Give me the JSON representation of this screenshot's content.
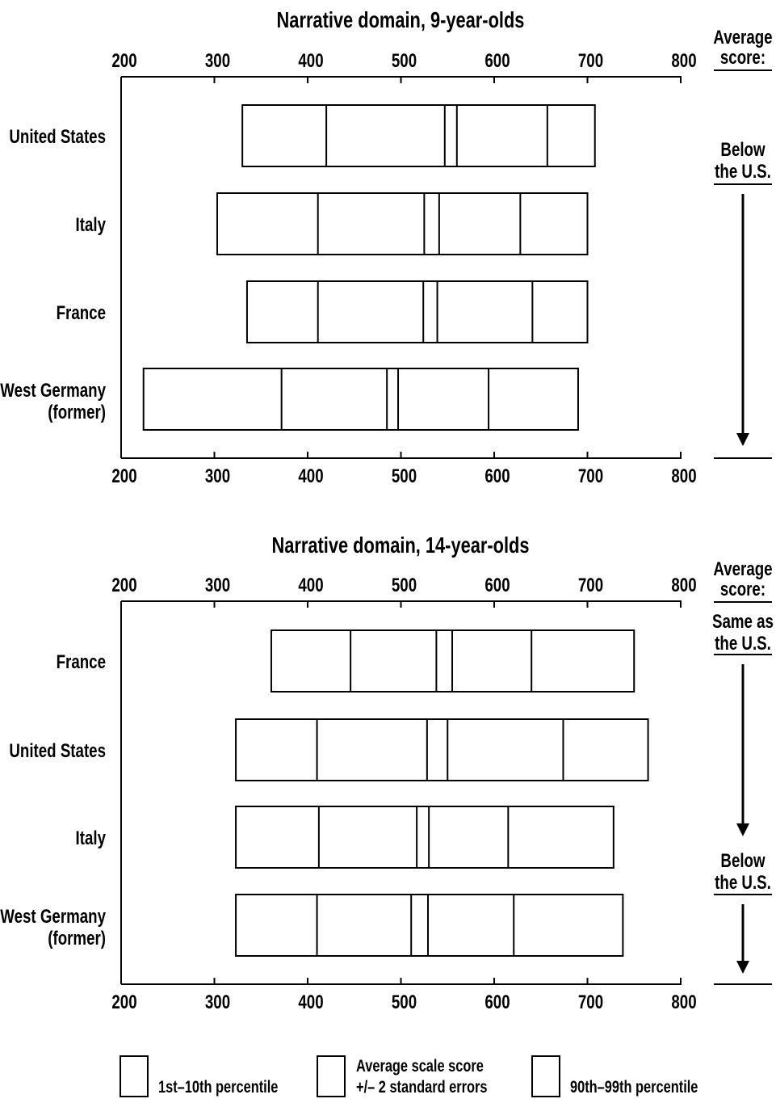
{
  "chart_data": [
    {
      "type": "box",
      "title": "Narrative domain, 9-year-olds",
      "xlim": [
        200,
        800
      ],
      "ticks": [
        200,
        300,
        400,
        500,
        600,
        700,
        800
      ],
      "side_header": "Average score:",
      "groups": [
        {
          "label": "Below the U.S.",
          "rows": [
            1,
            3
          ]
        }
      ],
      "countries": [
        {
          "label": "United States",
          "p1": 330,
          "p10": 420,
          "se_low": 547,
          "se_high": 560,
          "p90": 657,
          "p99": 708
        },
        {
          "label": "Italy",
          "p1": 303,
          "p10": 411,
          "se_low": 525,
          "se_high": 541,
          "p90": 628,
          "p99": 700
        },
        {
          "label": "France",
          "p1": 335,
          "p10": 411,
          "se_low": 524,
          "se_high": 539,
          "p90": 641,
          "p99": 700
        },
        {
          "label": "West Germany (former)",
          "p1": 224,
          "p10": 372,
          "se_low": 485,
          "se_high": 497,
          "p90": 594,
          "p99": 690
        }
      ]
    },
    {
      "type": "box",
      "title": "Narrative domain, 14-year-olds",
      "xlim": [
        200,
        800
      ],
      "ticks": [
        200,
        300,
        400,
        500,
        600,
        700,
        800
      ],
      "side_header": "Average score:",
      "groups": [
        {
          "label": "Same as the U.S.",
          "rows": [
            0,
            1
          ]
        },
        {
          "label": "Below the U.S.",
          "rows": [
            2,
            3
          ]
        }
      ],
      "countries": [
        {
          "label": "France",
          "p1": 361,
          "p10": 446,
          "se_low": 538,
          "se_high": 555,
          "p90": 640,
          "p99": 750
        },
        {
          "label": "United States",
          "p1": 323,
          "p10": 410,
          "se_low": 528,
          "se_high": 550,
          "p90": 674,
          "p99": 765
        },
        {
          "label": "Italy",
          "p1": 323,
          "p10": 412,
          "se_low": 517,
          "se_high": 530,
          "p90": 615,
          "p99": 728
        },
        {
          "label": "West Germany (former)",
          "p1": 323,
          "p10": 410,
          "se_low": 511,
          "se_high": 529,
          "p90": 621,
          "p99": 738
        }
      ]
    }
  ],
  "legend": {
    "p1_p10": "1st–10th percentile",
    "avg_line1": "Average scale score",
    "avg_line2": "+/– 2 standard errors",
    "p90_p99": "90th–99th percentile"
  }
}
